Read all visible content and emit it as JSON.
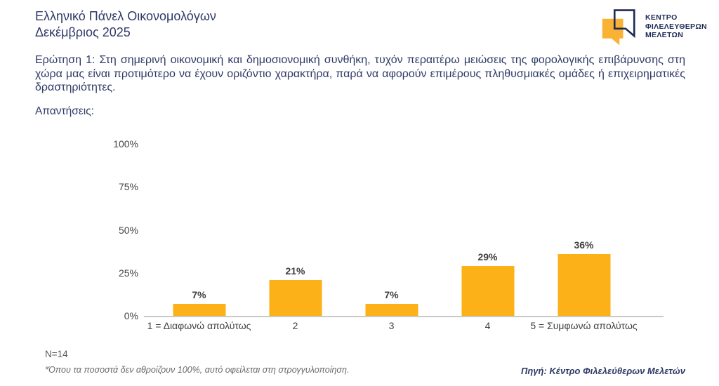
{
  "header": {
    "title_line1": "Ελληνικό Πάνελ Οικονομολόγων",
    "title_line2": "Δεκέμβριος 2025",
    "logo": {
      "icon": "speech-bubbles-logo",
      "line1": "ΚΕΝΤΡΟ",
      "line2": "ΦΙΛΕΛΕΥΘΕΡΩΝ",
      "line3": "ΜΕΛΕΤΩΝ",
      "orange": "#F9B233",
      "navy": "#1F2A56"
    }
  },
  "question": {
    "text": "Ερώτηση 1: Στη σημερινή οικονομική και δημοσιονομική συνθήκη, τυχόν περαιτέρω μειώσεις της φορολογικής επιβάρυνσης στη χώρα μας είναι προτιμότερο να έχουν οριζόντιο χαρακτήρα, παρά να αφορούν επιμέρους πληθυσμιακές ομάδες ή επιχειρηματικές δραστηριότητες."
  },
  "answers_label": "Απαντήσεις:",
  "chart_data": {
    "type": "bar",
    "title": "",
    "xlabel": "",
    "ylabel": "",
    "categories": [
      "1 = Διαφωνώ απολύτως",
      "2",
      "3",
      "4",
      "5 = Συμφωνώ απολύτως"
    ],
    "values": [
      7,
      21,
      7,
      29,
      36
    ],
    "value_labels": [
      "7%",
      "21%",
      "7%",
      "29%",
      "36%"
    ],
    "y_ticks": [
      "100%",
      "75%",
      "50%",
      "25%",
      "0%"
    ],
    "ylim": [
      0,
      100
    ],
    "grid": false,
    "legend": false,
    "bar_color": "#FBB117",
    "axis_line_color": "#C9C9C9"
  },
  "footer": {
    "sample_size": "N=14",
    "footnote": "*Όπου τα ποσοστά δεν αθροίζουν 100%, αυτό οφείλεται στη στρογγυλοποίηση.",
    "source": "Πηγή: Κέντρο Φιλελεύθερων Μελετών"
  }
}
